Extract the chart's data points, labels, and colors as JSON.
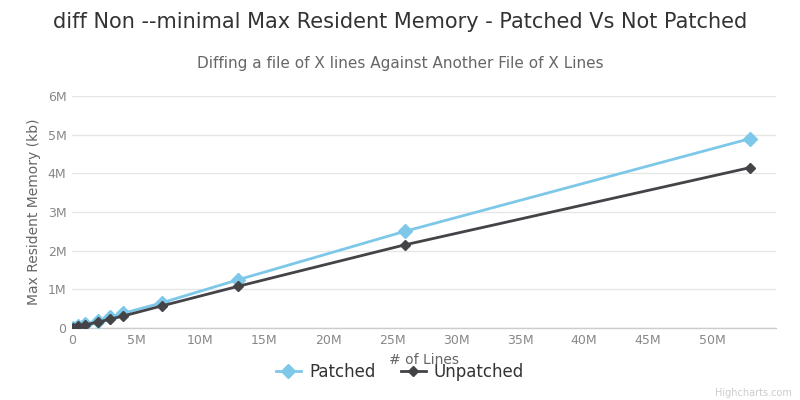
{
  "title": "diff Non --minimal Max Resident Memory - Patched Vs Not Patched",
  "subtitle": "Diffing a file of X lines Against Another File of X Lines",
  "xlabel": "# of Lines",
  "ylabel": "Max Resident Memory (kb)",
  "watermark": "Highcharts.com",
  "patched_x": [
    100000,
    500000,
    1000000,
    2000000,
    3000000,
    4000000,
    7000000,
    13000000,
    26000000,
    53000000
  ],
  "patched_y": [
    10000,
    50000,
    100000,
    180000,
    280000,
    380000,
    650000,
    1250000,
    2500000,
    4900000
  ],
  "unpatched_x": [
    100000,
    500000,
    1000000,
    2000000,
    3000000,
    4000000,
    7000000,
    13000000,
    26000000,
    53000000
  ],
  "unpatched_y": [
    8000,
    40000,
    80000,
    150000,
    230000,
    310000,
    570000,
    1080000,
    2150000,
    4150000
  ],
  "patched_color": "#7dc8e8",
  "unpatched_color": "#434348",
  "background_color": "#ffffff",
  "grid_color": "#e6e6e6",
  "title_fontsize": 15,
  "subtitle_fontsize": 11,
  "axis_label_fontsize": 10,
  "tick_fontsize": 9,
  "legend_fontsize": 12,
  "xlim": [
    0,
    55000000
  ],
  "ylim": [
    0,
    6000000
  ],
  "xticks": [
    0,
    5000000,
    10000000,
    15000000,
    20000000,
    25000000,
    30000000,
    35000000,
    40000000,
    45000000,
    50000000
  ],
  "yticks": [
    0,
    1000000,
    2000000,
    3000000,
    4000000,
    5000000,
    6000000
  ]
}
